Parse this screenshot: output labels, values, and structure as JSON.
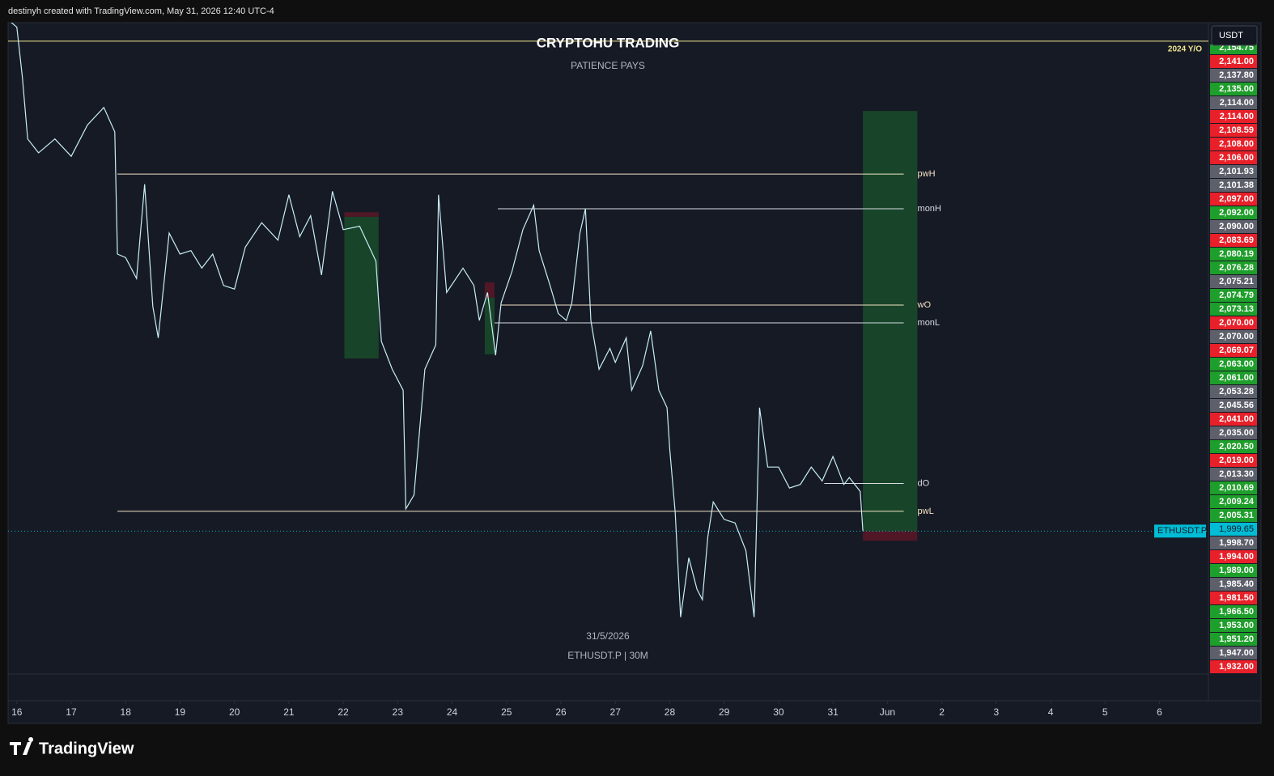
{
  "header": "destinyh created with TradingView.com, May 31, 2026 12:40 UTC-4",
  "brand": "TradingView",
  "chart_data": {
    "type": "line",
    "title": "CRYPTOHU TRADING",
    "subtitle": "PATIENCE  PAYS",
    "currency": "USDT",
    "date_label": "31/5/2026",
    "interval_label": "ETHUSDT.P | 30M",
    "series": [
      {
        "name": "ETHUSDT.P",
        "color": "#c8eef5",
        "x": [
          15.85,
          16.0,
          16.1,
          16.2,
          16.4,
          16.7,
          17.0,
          17.3,
          17.6,
          17.8,
          17.85,
          18.0,
          18.2,
          18.35,
          18.5,
          18.6,
          18.8,
          19.0,
          19.2,
          19.4,
          19.6,
          19.8,
          20.0,
          20.2,
          20.5,
          20.8,
          21.0,
          21.2,
          21.4,
          21.6,
          21.8,
          22.0,
          22.3,
          22.6,
          22.7,
          22.9,
          23.1,
          23.15,
          23.3,
          23.5,
          23.7,
          23.75,
          23.9,
          24.2,
          24.4,
          24.5,
          24.65,
          24.8,
          24.9,
          25.1,
          25.3,
          25.5,
          25.6,
          25.8,
          25.95,
          26.1,
          26.2,
          26.35,
          26.45,
          26.55,
          26.7,
          26.9,
          27.0,
          27.2,
          27.3,
          27.5,
          27.65,
          27.8,
          27.95,
          28.0,
          28.1,
          28.2,
          28.35,
          28.5,
          28.6,
          28.7,
          28.8,
          29.0,
          29.2,
          29.4,
          29.55,
          29.65,
          29.8,
          30.0,
          30.2,
          30.4,
          30.6,
          30.8,
          31.0,
          31.2,
          31.3,
          31.5,
          31.55
        ],
        "values": [
          2146,
          2144,
          2130,
          2112,
          2108,
          2112,
          2107,
          2116,
          2121,
          2114,
          2079,
          2078,
          2072,
          2099,
          2064,
          2055,
          2085,
          2079,
          2080,
          2075,
          2079,
          2070,
          2069,
          2081,
          2088,
          2083,
          2096,
          2084,
          2090,
          2073,
          2097,
          2086,
          2087,
          2077,
          2054,
          2046,
          2040,
          2006,
          2010,
          2046,
          2053,
          2096,
          2068,
          2075,
          2070,
          2060,
          2068,
          2050,
          2065,
          2074,
          2086,
          2093,
          2080,
          2070,
          2062,
          2060,
          2065,
          2085,
          2092,
          2060,
          2046,
          2052,
          2048,
          2055,
          2040,
          2047,
          2057,
          2040,
          2035,
          2023,
          2005,
          1975,
          1992,
          1983,
          1980,
          1998,
          2008,
          2003,
          2002,
          1994,
          1975,
          2035,
          2018,
          2018,
          2012,
          2013,
          2018,
          2014,
          2021,
          2013,
          2015,
          2011,
          1999.65
        ]
      }
    ],
    "current": {
      "value": 1999.65,
      "label": "1,999.65",
      "color": "#00bcd4"
    },
    "xlim": [
      15.84,
      37.9
    ],
    "xticks": [
      16,
      17,
      18,
      19,
      20,
      21,
      22,
      23,
      24,
      25,
      26,
      27,
      28,
      29,
      30,
      31,
      {
        "value": 32,
        "label": "Jun"
      },
      {
        "value": 33,
        "label": "2"
      },
      {
        "value": 34,
        "label": "3"
      },
      {
        "value": 35,
        "label": "4"
      },
      {
        "value": 36,
        "label": "5"
      },
      {
        "value": 37,
        "label": "6"
      }
    ],
    "ylim": [
      1958.7,
      2145.3
    ],
    "year_open": {
      "name": "2024 Y/O",
      "value": 2140,
      "color": "#f0e68c"
    },
    "levels": [
      {
        "name": "pwH",
        "value": 2101.93,
        "start": 17.85,
        "color": "#f3e2c4"
      },
      {
        "name": "monH",
        "value": 2092,
        "start": 24.84,
        "color": "#d9dde3"
      },
      {
        "name": "wO",
        "value": 2064.4,
        "start": 24.9,
        "color": "#f3e2c4"
      },
      {
        "name": "monL",
        "value": 2059.3,
        "start": 24.78,
        "color": "#d9dde3"
      },
      {
        "name": "dO",
        "value": 2013.3,
        "start": 30.84,
        "color": "#d9dde3"
      },
      {
        "name": "pwL",
        "value": 2005.31,
        "start": 17.85,
        "color": "#f3e2c4"
      }
    ],
    "positions": [
      {
        "x0": 22.02,
        "x1": 22.65,
        "stop": 2091.0,
        "entry": 2089.7,
        "target": 2049.1
      },
      {
        "x0": 24.6,
        "x1": 24.78,
        "stop": 2070.9,
        "entry": 2066.5,
        "target": 2050.3
      },
      {
        "x0": 31.55,
        "x1": 32.55,
        "stop": 1996.9,
        "entry": 1999.65,
        "target": 2120.0
      }
    ],
    "price_labels": [
      {
        "value": 2154.75,
        "label": "2,154.75",
        "color": "#1e9e2a"
      },
      {
        "value": 2141,
        "label": "2,141.00",
        "color": "#e8202a"
      },
      {
        "value": 2137.8,
        "label": "2,137.80",
        "color": "#5d606b"
      },
      {
        "value": 2135,
        "label": "2,135.00",
        "color": "#1e9e2a"
      },
      {
        "value": 2114,
        "label": "2,114.00",
        "color": "#5d606b"
      },
      {
        "value": 2114,
        "label": "2,114.00",
        "color": "#e8202a"
      },
      {
        "value": 2108.59,
        "label": "2,108.59",
        "color": "#e8202a"
      },
      {
        "value": 2108,
        "label": "2,108.00",
        "color": "#e8202a"
      },
      {
        "value": 2106,
        "label": "2,106.00",
        "color": "#e8202a"
      },
      {
        "value": 2101.93,
        "label": "2,101.93",
        "color": "#5d606b"
      },
      {
        "value": 2101.38,
        "label": "2,101.38",
        "color": "#5d606b"
      },
      {
        "value": 2097,
        "label": "2,097.00",
        "color": "#e8202a"
      },
      {
        "value": 2092,
        "label": "2,092.00",
        "color": "#1e9e2a"
      },
      {
        "value": 2090,
        "label": "2,090.00",
        "color": "#5d606b"
      },
      {
        "value": 2083.69,
        "label": "2,083.69",
        "color": "#e8202a"
      },
      {
        "value": 2080.19,
        "label": "2,080.19",
        "color": "#1e9e2a"
      },
      {
        "value": 2076.28,
        "label": "2,076.28",
        "color": "#1e9e2a"
      },
      {
        "value": 2075.21,
        "label": "2,075.21",
        "color": "#5d606b"
      },
      {
        "value": 2074.79,
        "label": "2,074.79",
        "color": "#1e9e2a"
      },
      {
        "value": 2073.13,
        "label": "2,073.13",
        "color": "#1e9e2a"
      },
      {
        "value": 2070,
        "label": "2,070.00",
        "color": "#e8202a"
      },
      {
        "value": 2070,
        "label": "2,070.00",
        "color": "#5d606b"
      },
      {
        "value": 2069.07,
        "label": "2,069.07",
        "color": "#e8202a"
      },
      {
        "value": 2063,
        "label": "2,063.00",
        "color": "#1e9e2a"
      },
      {
        "value": 2061,
        "label": "2,061.00",
        "color": "#1e9e2a"
      },
      {
        "value": 2053.28,
        "label": "2,053.28",
        "color": "#5d606b"
      },
      {
        "value": 2045.56,
        "label": "2,045.56",
        "color": "#5d606b"
      },
      {
        "value": 2041,
        "label": "2,041.00",
        "color": "#e8202a"
      },
      {
        "value": 2035,
        "label": "2,035.00",
        "color": "#5d606b"
      },
      {
        "value": 2020.5,
        "label": "2,020.50",
        "color": "#1e9e2a"
      },
      {
        "value": 2019,
        "label": "2,019.00",
        "color": "#e8202a"
      },
      {
        "value": 2013.3,
        "label": "2,013.30",
        "color": "#5d606b"
      },
      {
        "value": 2010.69,
        "label": "2,010.69",
        "color": "#1e9e2a"
      },
      {
        "value": 2009.24,
        "label": "2,009.24",
        "color": "#1e9e2a"
      },
      {
        "value": 2005.31,
        "label": "2,005.31",
        "color": "#1e9e2a"
      },
      {
        "value": 1998.7,
        "label": "1,998.70",
        "color": "#5d606b"
      },
      {
        "value": 1994,
        "label": "1,994.00",
        "color": "#e8202a"
      },
      {
        "value": 1989,
        "label": "1,989.00",
        "color": "#1e9e2a"
      },
      {
        "value": 1985.4,
        "label": "1,985.40",
        "color": "#5d606b"
      },
      {
        "value": 1981.5,
        "label": "1,981.50",
        "color": "#e8202a"
      },
      {
        "value": 1966.5,
        "label": "1,966.50",
        "color": "#1e9e2a"
      },
      {
        "value": 1953,
        "label": "1,953.00",
        "color": "#1e9e2a"
      },
      {
        "value": 1951.2,
        "label": "1,951.20",
        "color": "#1e9e2a"
      },
      {
        "value": 1947,
        "label": "1,947.00",
        "color": "#5d606b"
      },
      {
        "value": 1932,
        "label": "1,932.00",
        "color": "#e8202a"
      }
    ]
  }
}
